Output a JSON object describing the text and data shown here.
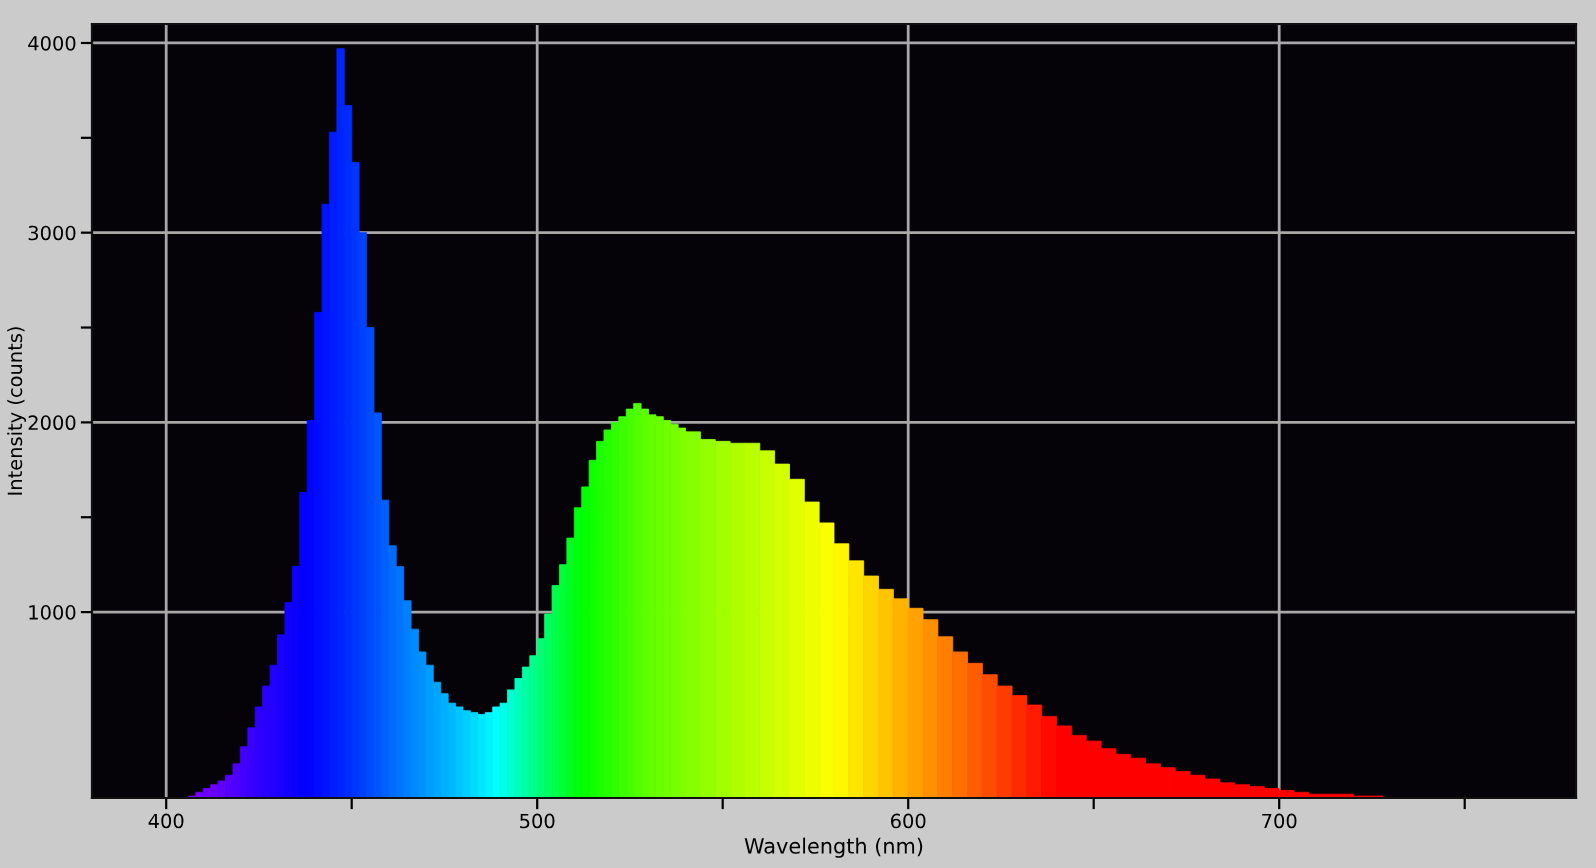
{
  "chart_data": {
    "type": "histogram",
    "xlabel": "Wavelength (nm)",
    "ylabel": "Intensity (counts)",
    "xlim": [
      380,
      780
    ],
    "ylim": [
      20,
      4100
    ],
    "xticks": [
      400,
      {
        "value": 450,
        "label": null
      },
      500,
      {
        "value": 550,
        "label": null
      },
      600,
      {
        "value": 650,
        "label": null
      },
      700,
      {
        "value": 750,
        "label": null
      }
    ],
    "yticks": [
      1000,
      {
        "value": 1500,
        "label": null
      },
      2000,
      {
        "value": 2500,
        "label": null
      },
      3000,
      {
        "value": 3500,
        "label": null
      },
      4000
    ],
    "grid": true,
    "bins": [
      406,
      408,
      410,
      412,
      414,
      416,
      418,
      420,
      422,
      424,
      426,
      428,
      430,
      432,
      434,
      436,
      438,
      440,
      442,
      444,
      446,
      448,
      450,
      452,
      454,
      456,
      458,
      460,
      462,
      464,
      466,
      468,
      470,
      472,
      474,
      476,
      478,
      480,
      482,
      484,
      486,
      488,
      490,
      492,
      494,
      496,
      498,
      500,
      502,
      504,
      506,
      508,
      510,
      512,
      514,
      516,
      518,
      520,
      522,
      524,
      526,
      528,
      530,
      532,
      534,
      536,
      538,
      540,
      544,
      548,
      552,
      556,
      560,
      564,
      568,
      572,
      576,
      580,
      584,
      588,
      592,
      596,
      600,
      604,
      608,
      612,
      616,
      620,
      624,
      628,
      632,
      636,
      640,
      644,
      648,
      652,
      656,
      660,
      664,
      668,
      672,
      676,
      680,
      684,
      688,
      692,
      696,
      700,
      704,
      708,
      712,
      716,
      720,
      724,
      728
    ],
    "values": [
      30,
      50,
      70,
      90,
      110,
      140,
      200,
      290,
      390,
      500,
      610,
      720,
      880,
      1050,
      1240,
      1630,
      2010,
      2580,
      3150,
      3530,
      3970,
      3670,
      3370,
      3000,
      2500,
      2050,
      1590,
      1350,
      1240,
      1060,
      910,
      790,
      720,
      630,
      570,
      520,
      500,
      480,
      470,
      460,
      470,
      500,
      520,
      590,
      650,
      710,
      770,
      860,
      990,
      1140,
      1250,
      1390,
      1550,
      1660,
      1800,
      1900,
      1960,
      2000,
      2030,
      2070,
      2100,
      2070,
      2040,
      2030,
      2010,
      1990,
      1970,
      1950,
      1910,
      1900,
      1890,
      1890,
      1850,
      1780,
      1700,
      1580,
      1470,
      1360,
      1270,
      1190,
      1120,
      1070,
      1020,
      960,
      870,
      790,
      730,
      670,
      610,
      560,
      510,
      450,
      400,
      350,
      320,
      280,
      250,
      230,
      200,
      180,
      160,
      140,
      120,
      100,
      90,
      80,
      70,
      60,
      50,
      40,
      40,
      40,
      30,
      30
    ],
    "colors": [
      "#7c00ff",
      "#7500ff",
      "#6e00ff",
      "#6700ff",
      "#6000ff",
      "#5600ff",
      "#4d00ff",
      "#4300ff",
      "#3a00ff",
      "#3000ff",
      "#2900ff",
      "#2100ff",
      "#1a00ff",
      "#1200ff",
      "#0b00ff",
      "#0400ff",
      "#0004ff",
      "#000cff",
      "#0014ff",
      "#001cff",
      "#0024ff",
      "#002cff",
      "#0035ff",
      "#0040ff",
      "#004bff",
      "#0055ff",
      "#0060ff",
      "#006bff",
      "#0075ff",
      "#0080ff",
      "#008aff",
      "#0093ff",
      "#009dff",
      "#00a6ff",
      "#00b0ff",
      "#00baff",
      "#00c3ff",
      "#00ceff",
      "#00daff",
      "#00e7ff",
      "#00f3ff",
      "#00ffff",
      "#00ffe8",
      "#00ffd1",
      "#00ffba",
      "#00ffa3",
      "#00ff8c",
      "#00ff75",
      "#00ff60",
      "#00ff4b",
      "#00ff35",
      "#00ff20",
      "#00ff0b",
      "#05ff00",
      "#10ff00",
      "#1bff00",
      "#25ff00",
      "#30ff00",
      "#3bff00",
      "#45ff00",
      "#50ff00",
      "#5bff00",
      "#63ff00",
      "#6aff00",
      "#70ff00",
      "#76ff00",
      "#7dff00",
      "#86ff00",
      "#93ff00",
      "#a0ff00",
      "#adff00",
      "#baff00",
      "#c6ff00",
      "#d3ff00",
      "#e0ff00",
      "#ecff00",
      "#f9ff00",
      "#fff700",
      "#ffe600",
      "#ffd500",
      "#ffc400",
      "#ffb300",
      "#ffa200",
      "#ff9100",
      "#ff8000",
      "#ff6f00",
      "#ff5e00",
      "#ff4d00",
      "#ff3c00",
      "#ff2b00",
      "#ff1a00",
      "#ff0900",
      "#ff0000",
      "#ff0000",
      "#ff0000",
      "#ff0000",
      "#ff0000",
      "#ff0000",
      "#ff0000",
      "#ff0000",
      "#ff0000",
      "#ff0000",
      "#ff0000",
      "#ff0000",
      "#ff0000",
      "#ff0000",
      "#ff0000",
      "#ff0000",
      "#ff0000",
      "#ff0000",
      "#ff0000",
      "#ff0000",
      "#ff0000",
      "#ff0000"
    ]
  }
}
